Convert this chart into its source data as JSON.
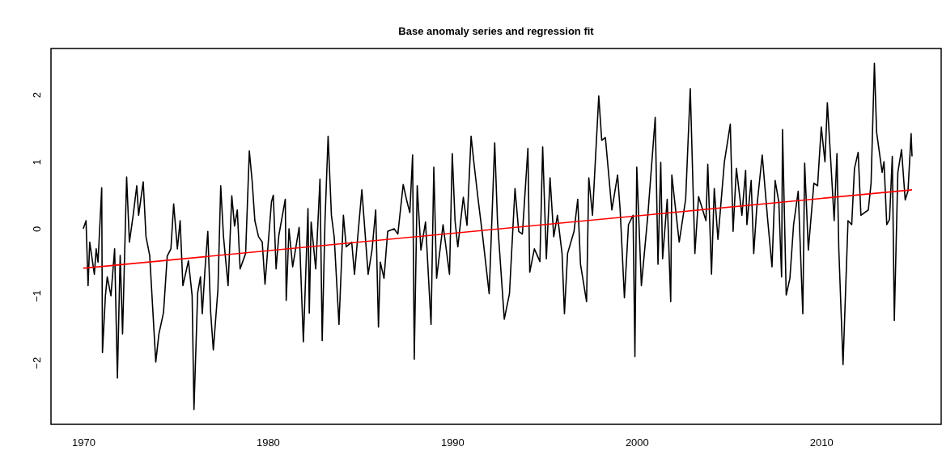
{
  "chart_data": {
    "type": "line",
    "title": "Base anomaly series and regression fit",
    "xlim": [
      1968.25,
      2016.5
    ],
    "xticks": [
      1970,
      1980,
      1990,
      2000,
      2010
    ],
    "ylim": [
      -2.92,
      2.69
    ],
    "yticks": [
      -2,
      -1,
      0,
      1,
      2
    ],
    "grid": false,
    "marker": "none",
    "line_style": "solid",
    "series": [
      {
        "color": "#000000",
        "x": [
          1970.0,
          1970.15,
          1970.26,
          1970.35,
          1970.6,
          1970.7,
          1970.8,
          1971.0,
          1971.04,
          1971.2,
          1971.3,
          1971.5,
          1971.7,
          1971.85,
          1972.0,
          1972.13,
          1972.35,
          1972.5,
          1972.7,
          1972.9,
          1973.0,
          1973.25,
          1973.4,
          1973.6,
          1973.93,
          1974.1,
          1974.35,
          1974.55,
          1974.75,
          1974.9,
          1975.1,
          1975.25,
          1975.4,
          1975.7,
          1975.9,
          1976.0,
          1976.2,
          1976.35,
          1976.45,
          1976.6,
          1976.75,
          1976.9,
          1977.05,
          1977.3,
          1977.45,
          1977.6,
          1977.85,
          1978.05,
          1978.2,
          1978.35,
          1978.5,
          1978.8,
          1979.0,
          1979.15,
          1979.3,
          1979.5,
          1979.7,
          1979.85,
          1980.2,
          1980.3,
          1980.45,
          1980.6,
          1980.95,
          1981.0,
          1981.15,
          1981.35,
          1981.7,
          1981.93,
          1982.18,
          1982.25,
          1982.35,
          1982.6,
          1982.83,
          1982.95,
          1983.1,
          1983.27,
          1983.45,
          1983.6,
          1983.86,
          1984.1,
          1984.25,
          1984.55,
          1984.7,
          1985.1,
          1985.44,
          1985.65,
          1985.85,
          1986.0,
          1986.1,
          1986.3,
          1986.5,
          1986.85,
          1987.05,
          1987.34,
          1987.55,
          1987.7,
          1987.85,
          1987.94,
          1988.1,
          1988.3,
          1988.55,
          1988.85,
          1989.0,
          1989.15,
          1989.5,
          1989.85,
          1990.0,
          1990.15,
          1990.3,
          1990.6,
          1990.8,
          1991.02,
          1991.2,
          1991.4,
          1991.65,
          1992.0,
          1992.3,
          1992.45,
          1992.82,
          1993.1,
          1993.4,
          1993.6,
          1993.8,
          1994.1,
          1994.2,
          1994.45,
          1994.75,
          1994.9,
          1995.1,
          1995.3,
          1995.5,
          1995.7,
          1995.95,
          1996.08,
          1996.25,
          1996.6,
          1996.8,
          1996.95,
          1997.28,
          1997.4,
          1997.6,
          1997.94,
          1998.1,
          1998.3,
          1998.65,
          1998.96,
          1999.1,
          1999.33,
          1999.55,
          1999.8,
          1999.9,
          2000.0,
          2000.25,
          2000.6,
          2001.0,
          2001.15,
          2001.3,
          2001.4,
          2001.65,
          2001.84,
          2001.9,
          2002.3,
          2002.65,
          2002.9,
          2003.15,
          2003.35,
          2003.75,
          2003.85,
          2004.05,
          2004.2,
          2004.4,
          2004.75,
          2005.07,
          2005.22,
          2005.4,
          2005.7,
          2005.9,
          2005.97,
          2006.2,
          2006.34,
          2006.5,
          2006.8,
          2007.1,
          2007.33,
          2007.5,
          2007.7,
          2007.85,
          2007.9,
          2008.1,
          2008.3,
          2008.5,
          2008.75,
          2009.0,
          2009.1,
          2009.3,
          2009.6,
          2009.8,
          2010.0,
          2010.2,
          2010.33,
          2010.5,
          2010.7,
          2010.85,
          2010.95,
          2011.18,
          2011.45,
          2011.65,
          2011.8,
          2012.0,
          2012.15,
          2012.55,
          2012.7,
          2012.88,
          2013.0,
          2013.3,
          2013.4,
          2013.55,
          2013.7,
          2013.85,
          2013.96,
          2014.15,
          2014.35,
          2014.55,
          2014.7,
          2014.87,
          2014.92
        ],
        "values": [
          0.0,
          0.12,
          -0.85,
          -0.2,
          -0.68,
          -0.3,
          -0.5,
          0.61,
          -1.85,
          -1.0,
          -0.72,
          -1.0,
          -0.3,
          -2.23,
          -0.4,
          -1.57,
          0.77,
          -0.2,
          0.19,
          0.64,
          0.2,
          0.7,
          -0.12,
          -0.4,
          -1.99,
          -1.57,
          -1.25,
          -0.41,
          -0.3,
          0.37,
          -0.3,
          0.12,
          -0.85,
          -0.48,
          -1.0,
          -2.7,
          -0.96,
          -0.72,
          -1.27,
          -0.6,
          -0.04,
          -1.23,
          -1.81,
          -0.9,
          0.64,
          -0.12,
          -0.85,
          0.49,
          0.04,
          0.28,
          -0.6,
          -0.37,
          1.16,
          0.72,
          0.12,
          -0.12,
          -0.2,
          -0.83,
          0.4,
          0.5,
          -0.6,
          -0.1,
          0.44,
          -1.07,
          0.0,
          -0.57,
          0.02,
          -1.69,
          0.3,
          -1.26,
          0.1,
          -0.6,
          0.74,
          -1.67,
          0.1,
          1.38,
          0.2,
          -0.12,
          -1.43,
          0.2,
          -0.27,
          -0.2,
          -0.68,
          0.58,
          -0.68,
          -0.32,
          0.28,
          -1.47,
          -0.5,
          -0.74,
          -0.04,
          0.0,
          -0.08,
          0.66,
          0.4,
          0.24,
          1.1,
          -1.95,
          0.64,
          -0.32,
          0.1,
          -1.43,
          0.92,
          -0.74,
          0.06,
          -0.68,
          1.12,
          0.12,
          -0.27,
          0.47,
          0.05,
          1.38,
          0.92,
          0.44,
          -0.12,
          -0.97,
          1.28,
          0.12,
          -1.35,
          -0.97,
          0.6,
          -0.04,
          -0.08,
          1.2,
          -0.65,
          -0.3,
          -0.49,
          1.22,
          -0.45,
          0.76,
          -0.12,
          0.2,
          -0.37,
          -1.27,
          -0.37,
          -0.04,
          0.44,
          -0.53,
          -1.09,
          0.76,
          0.2,
          1.98,
          1.32,
          1.36,
          0.28,
          0.8,
          0.28,
          -1.03,
          0.06,
          0.2,
          -1.91,
          0.92,
          -0.85,
          0.2,
          1.66,
          -0.53,
          0.99,
          -0.45,
          0.44,
          -1.09,
          0.8,
          -0.2,
          0.44,
          2.09,
          -0.37,
          0.48,
          0.12,
          0.96,
          -0.68,
          0.6,
          -0.16,
          1.0,
          1.56,
          -0.04,
          0.9,
          0.2,
          0.87,
          0.06,
          0.72,
          -0.37,
          0.3,
          1.1,
          0.12,
          -0.57,
          0.72,
          0.4,
          -0.72,
          1.48,
          -0.99,
          -0.74,
          0.06,
          0.56,
          -1.27,
          0.98,
          -0.32,
          0.68,
          0.64,
          1.52,
          1.0,
          1.88,
          1.08,
          0.12,
          1.12,
          -0.3,
          -2.03,
          0.12,
          0.06,
          0.9,
          1.14,
          0.2,
          0.28,
          0.68,
          2.47,
          1.44,
          0.84,
          1.0,
          0.06,
          0.14,
          1.08,
          -1.37,
          0.84,
          1.18,
          0.43,
          0.56,
          1.42,
          1.08
        ]
      },
      {
        "type": "line",
        "color": "#ff0000",
        "x": [
          1970.0,
          2014.92
        ],
        "values": [
          -0.59,
          0.58
        ]
      }
    ]
  }
}
